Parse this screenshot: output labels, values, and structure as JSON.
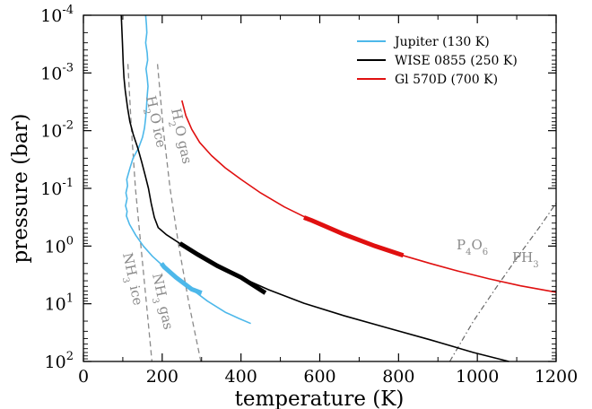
{
  "chart_data": {
    "type": "line",
    "xlabel": "temperature (K)",
    "ylabel": "pressure (bar)",
    "xlim": [
      0,
      1200
    ],
    "ylim": [
      0.0001,
      100
    ],
    "y_scale": "log",
    "y_inverted": true,
    "grid": false,
    "legend_position": "top-right",
    "x_ticks": [
      0,
      200,
      400,
      600,
      800,
      1000,
      1200
    ],
    "y_ticks": [
      {
        "value": 0.0001,
        "base": "10",
        "exp": "-4"
      },
      {
        "value": 0.001,
        "base": "10",
        "exp": "-3"
      },
      {
        "value": 0.01,
        "base": "10",
        "exp": "-2"
      },
      {
        "value": 0.1,
        "base": "10",
        "exp": "-1"
      },
      {
        "value": 1,
        "base": "10",
        "exp": "0"
      },
      {
        "value": 10,
        "base": "10",
        "exp": "1"
      },
      {
        "value": 100,
        "base": "10",
        "exp": "2"
      }
    ],
    "series": [
      {
        "name": "Jupiter (130 K)",
        "color": "#4db8ea",
        "points": [
          [
            158,
            0.0001
          ],
          [
            160,
            0.00015
          ],
          [
            161,
            0.0002
          ],
          [
            158,
            0.0003
          ],
          [
            162,
            0.00045
          ],
          [
            163,
            0.0006
          ],
          [
            159,
            0.00085
          ],
          [
            162,
            0.0012
          ],
          [
            164,
            0.0017
          ],
          [
            162,
            0.0025
          ],
          [
            160,
            0.004
          ],
          [
            158,
            0.006
          ],
          [
            155,
            0.009
          ],
          [
            150,
            0.013
          ],
          [
            140,
            0.02
          ],
          [
            126,
            0.03
          ],
          [
            118,
            0.045
          ],
          [
            110,
            0.07
          ],
          [
            112,
            0.09
          ],
          [
            108,
            0.12
          ],
          [
            111,
            0.15
          ],
          [
            107,
            0.2
          ],
          [
            111,
            0.25
          ],
          [
            109,
            0.3
          ],
          [
            117,
            0.42
          ],
          [
            133,
            0.65
          ],
          [
            152,
            1.0
          ],
          [
            175,
            1.5
          ],
          [
            205,
            2.3
          ],
          [
            235,
            3.5
          ],
          [
            275,
            5.6
          ],
          [
            315,
            9
          ],
          [
            360,
            14
          ],
          [
            395,
            18
          ],
          [
            425,
            22
          ]
        ],
        "thick_range": [
          [
            198,
            2
          ],
          [
            300,
            6.5
          ]
        ]
      },
      {
        "name": "WISE 0855 (250 K)",
        "color": "#000000",
        "points": [
          [
            96,
            0.0001
          ],
          [
            99,
            0.0003
          ],
          [
            101,
            0.0007
          ],
          [
            103,
            0.0012
          ],
          [
            106,
            0.002
          ],
          [
            112,
            0.004
          ],
          [
            118,
            0.007
          ],
          [
            127,
            0.012
          ],
          [
            138,
            0.02
          ],
          [
            148,
            0.035
          ],
          [
            157,
            0.06
          ],
          [
            165,
            0.1
          ],
          [
            172,
            0.18
          ],
          [
            180,
            0.32
          ],
          [
            190,
            0.48
          ],
          [
            210,
            0.63
          ],
          [
            245,
            0.9
          ],
          [
            290,
            1.4
          ],
          [
            340,
            2.2
          ],
          [
            400,
            3.5
          ],
          [
            470,
            5.7
          ],
          [
            560,
            9.8
          ],
          [
            660,
            16
          ],
          [
            770,
            26
          ],
          [
            880,
            42
          ],
          [
            990,
            70
          ],
          [
            1080,
            100
          ]
        ],
        "thick_range": [
          [
            245,
            0.9
          ],
          [
            462,
            6.5
          ]
        ]
      },
      {
        "name": "Gl 570D (700 K)",
        "color": "#e01010",
        "points": [
          [
            250,
            0.003
          ],
          [
            260,
            0.0055
          ],
          [
            275,
            0.0095
          ],
          [
            295,
            0.016
          ],
          [
            325,
            0.027
          ],
          [
            360,
            0.044
          ],
          [
            400,
            0.07
          ],
          [
            450,
            0.12
          ],
          [
            510,
            0.21
          ],
          [
            580,
            0.36
          ],
          [
            660,
            0.62
          ],
          [
            740,
            1.0
          ],
          [
            810,
            1.45
          ],
          [
            880,
            2.0
          ],
          [
            950,
            2.7
          ],
          [
            1030,
            3.7
          ],
          [
            1110,
            4.9
          ],
          [
            1200,
            6.3
          ]
        ],
        "thick_range": [
          [
            560,
            0.32
          ],
          [
            812,
            1.45
          ]
        ]
      }
    ],
    "condensation_curves": [
      {
        "points": [
          [
            113,
            0.0007
          ],
          [
            122,
            0.01
          ],
          [
            132,
            0.1
          ],
          [
            146,
            1
          ],
          [
            160,
            10
          ],
          [
            174,
            100
          ]
        ],
        "labels": [
          "NH",
          "3",
          " ice"
        ]
      },
      {
        "points": [
          [
            188,
            0.0007
          ],
          [
            203,
            0.01
          ],
          [
            220,
            0.1
          ],
          [
            242,
            1
          ],
          [
            268,
            10
          ],
          [
            298,
            100
          ]
        ],
        "labels": [
          "NH",
          "3",
          " gas"
        ]
      },
      {
        "labels_ice": [
          "H",
          "2",
          "O ice"
        ],
        "labels_gas": [
          "H",
          "2",
          "O gas"
        ]
      },
      {
        "points": [
          [
            930,
            100
          ],
          [
            990,
            20
          ],
          [
            1050,
            5
          ],
          [
            1110,
            1.3
          ],
          [
            1160,
            0.45
          ],
          [
            1200,
            0.18
          ]
        ],
        "labels": [
          "P",
          "4",
          "O",
          "6"
        ],
        "label2": [
          "PH",
          "3"
        ]
      }
    ]
  }
}
